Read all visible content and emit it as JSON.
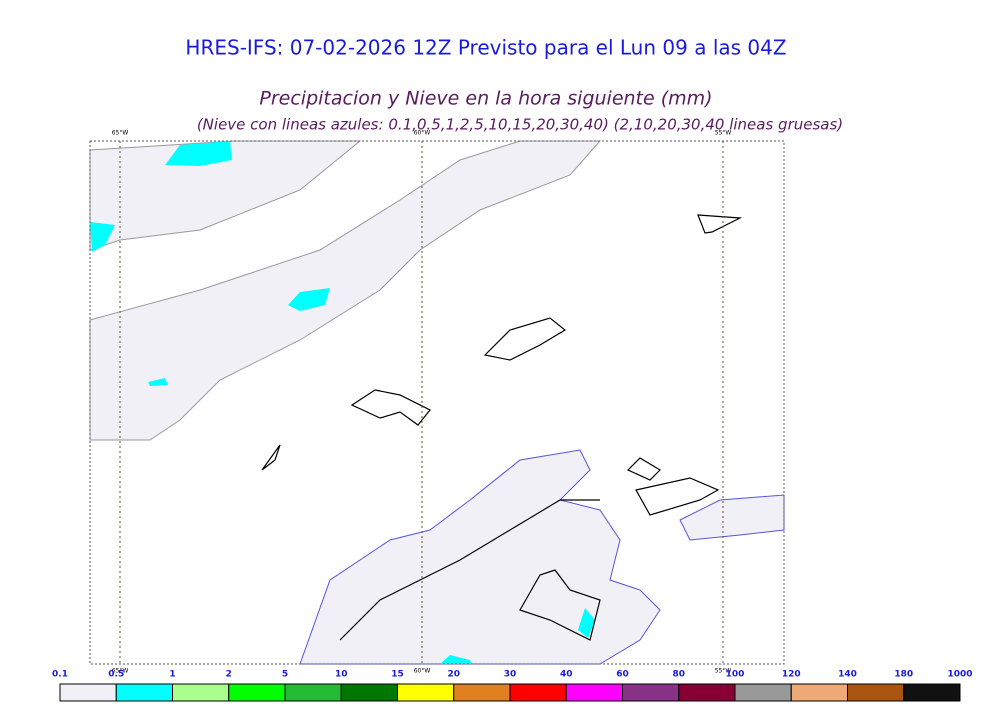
{
  "header": {
    "title": "HRES-IFS: 07-02-2026 12Z Previsto para el Lun 09 a las 04Z",
    "subtitle": "Precipitacion y Nieve en la hora siguiente (mm)",
    "note": "(Nieve con lineas azules: 0.1,0.5,1,2,5,10,15,20,30,40)  (2,10,20,30,40 lineas gruesas)"
  },
  "map": {
    "meridians": [
      "65°W",
      "60°W",
      "55°W"
    ]
  },
  "colorbar": {
    "labels": [
      "0.1",
      "0.5",
      "1",
      "2",
      "5",
      "10",
      "15",
      "20",
      "30",
      "40",
      "60",
      "80",
      "100",
      "120",
      "140",
      "180",
      "1000"
    ],
    "colors": [
      "#f0f0f6",
      "#00ffff",
      "#aaff8c",
      "#00ff00",
      "#22bb33",
      "#007700",
      "#ffff00",
      "#e08020",
      "#ff0000",
      "#ff00ff",
      "#883388",
      "#880033",
      "#999999",
      "#eeaa77",
      "#aa5511",
      "#111111"
    ]
  }
}
